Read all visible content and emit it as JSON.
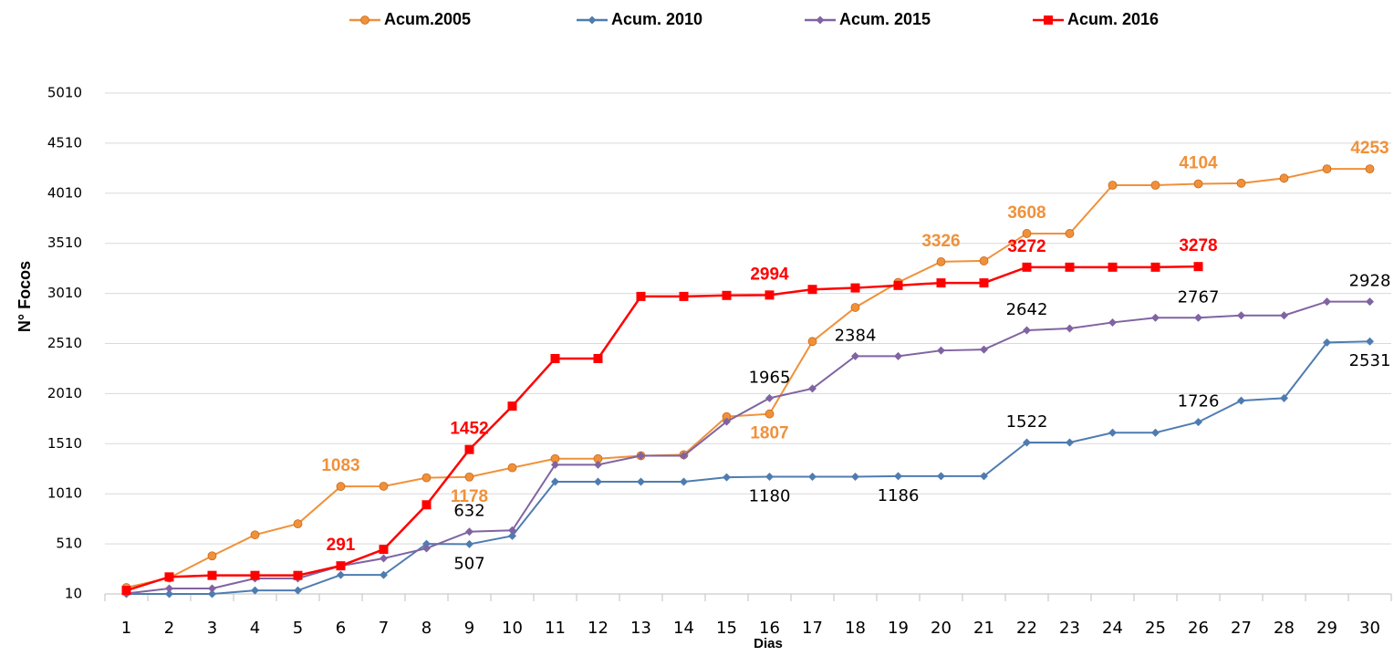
{
  "chart_data": {
    "type": "line",
    "y_label": "N° Focos",
    "x_label": "Dias",
    "categories": [
      "1",
      "2",
      "3",
      "4",
      "5",
      "6",
      "7",
      "8",
      "9",
      "10",
      "11",
      "12",
      "13",
      "14",
      "15",
      "16",
      "17",
      "18",
      "19",
      "20",
      "21",
      "22",
      "23",
      "24",
      "25",
      "26",
      "27",
      "28",
      "29",
      "30"
    ],
    "ylim": [
      10,
      5010
    ],
    "yticks": [
      10,
      510,
      1010,
      1510,
      2010,
      2510,
      3010,
      3510,
      4010,
      4510,
      5010
    ],
    "grid": true,
    "legend": "top",
    "series": [
      {
        "name": "Acum.2005",
        "color": "#f0913a",
        "marker": "circle",
        "values": [
          74,
          170,
          390,
          600,
          710,
          1083,
          1085,
          1170,
          1178,
          1270,
          1360,
          1360,
          1390,
          1400,
          1780,
          1807,
          2530,
          2870,
          3120,
          3326,
          3335,
          3608,
          3608,
          4090,
          4090,
          4104,
          4110,
          4160,
          4253,
          4253
        ],
        "value_labels": [
          null,
          null,
          null,
          null,
          null,
          "1083",
          null,
          null,
          "1178",
          null,
          null,
          null,
          null,
          null,
          null,
          "1807",
          null,
          null,
          null,
          "3326",
          null,
          "3608",
          null,
          null,
          null,
          "4104",
          null,
          null,
          null,
          "4253"
        ]
      },
      {
        "name": "Acum. 2010",
        "color": "#4f7cb0",
        "marker": "diamond",
        "values": [
          10,
          10,
          10,
          45,
          45,
          200,
          200,
          510,
          507,
          590,
          1130,
          1130,
          1130,
          1130,
          1175,
          1180,
          1180,
          1180,
          1186,
          1186,
          1186,
          1522,
          1522,
          1620,
          1620,
          1726,
          1940,
          1965,
          2520,
          2531
        ],
        "value_labels": [
          null,
          null,
          null,
          null,
          null,
          null,
          null,
          null,
          "507",
          null,
          null,
          null,
          null,
          null,
          null,
          "1180",
          null,
          null,
          "1186",
          null,
          null,
          "1522",
          null,
          null,
          null,
          "1726",
          null,
          null,
          null,
          "2531"
        ]
      },
      {
        "name": "Acum. 2015",
        "color": "#8064a2",
        "marker": "diamond",
        "values": [
          15,
          65,
          65,
          165,
          165,
          290,
          365,
          465,
          632,
          645,
          1300,
          1300,
          1390,
          1390,
          1730,
          1965,
          2060,
          2384,
          2384,
          2440,
          2450,
          2642,
          2660,
          2720,
          2767,
          2767,
          2790,
          2790,
          2928,
          2928
        ],
        "value_labels": [
          null,
          null,
          null,
          null,
          null,
          null,
          null,
          null,
          "632",
          null,
          null,
          null,
          null,
          null,
          null,
          "1965",
          null,
          "2384",
          null,
          null,
          null,
          "2642",
          null,
          null,
          null,
          "2767",
          null,
          null,
          null,
          "2928"
        ]
      },
      {
        "name": "Acum. 2016",
        "color": "#ff0000",
        "marker": "square",
        "values": [
          45,
          180,
          195,
          195,
          195,
          291,
          455,
          900,
          1452,
          1885,
          2360,
          2360,
          2980,
          2980,
          2990,
          2994,
          3050,
          3065,
          3090,
          3115,
          3115,
          3272,
          3272,
          3272,
          3272,
          3278,
          null,
          null,
          null,
          null
        ],
        "value_labels": [
          null,
          null,
          null,
          null,
          null,
          "291",
          null,
          null,
          "1452",
          null,
          null,
          null,
          null,
          null,
          null,
          "2994",
          null,
          null,
          null,
          null,
          null,
          "3272",
          null,
          null,
          null,
          "3278",
          null,
          null,
          null,
          null
        ]
      }
    ]
  }
}
